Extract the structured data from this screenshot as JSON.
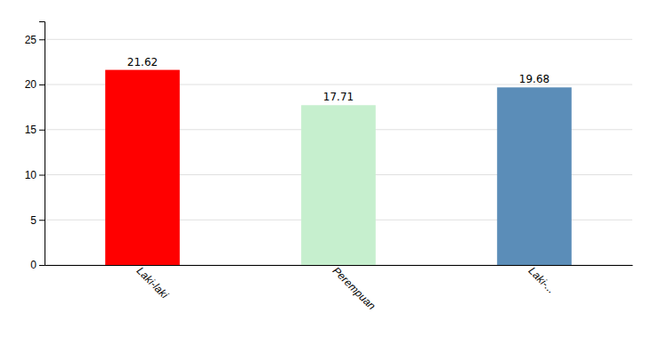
{
  "chart_data": {
    "type": "bar",
    "categories": [
      "Laki-laki",
      "Perempuan",
      "Laki-..."
    ],
    "values": [
      21.62,
      17.71,
      19.68
    ],
    "colors": [
      "#FF0000",
      "#C6EFCE",
      "#5B8DB8"
    ],
    "ylim": [
      0,
      27
    ],
    "yticks": [
      0,
      5,
      10,
      15,
      20,
      25
    ],
    "grid": true,
    "data_labels": true
  }
}
